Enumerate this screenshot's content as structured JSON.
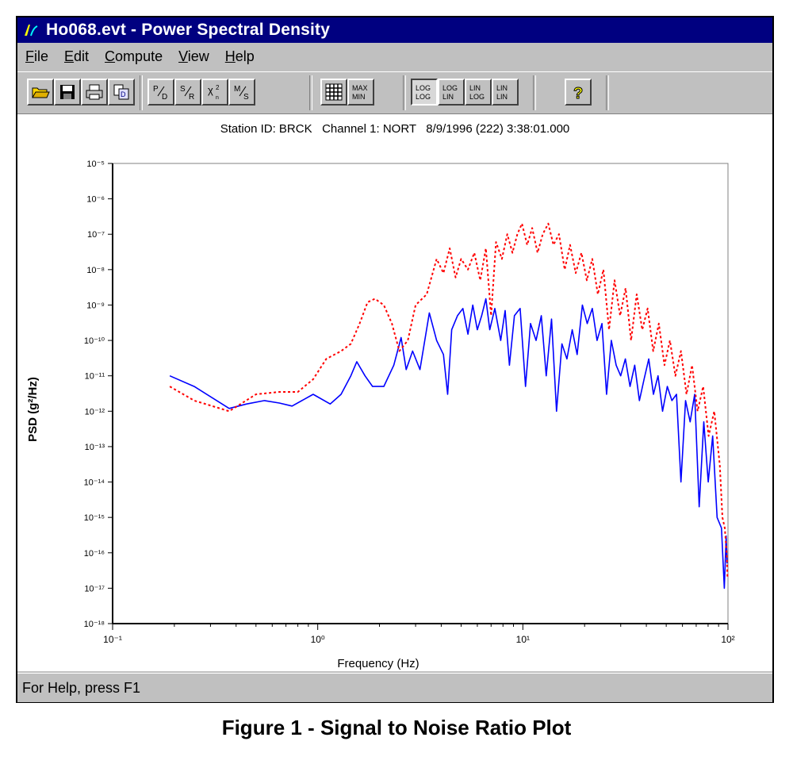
{
  "window": {
    "title": "Ho068.evt - Power Spectral Density"
  },
  "menu": {
    "items": [
      {
        "label": "File",
        "accel": "F",
        "rest": "ile"
      },
      {
        "label": "Edit",
        "accel": "E",
        "rest": "dit"
      },
      {
        "label": "Compute",
        "accel": "C",
        "rest": "ompute"
      },
      {
        "label": "View",
        "accel": "V",
        "rest": "iew"
      },
      {
        "label": "Help",
        "accel": "H",
        "rest": "elp"
      }
    ]
  },
  "toolbar": {
    "buttons": [
      {
        "name": "open-icon",
        "glyph": "📂"
      },
      {
        "name": "save-icon",
        "glyph": "💾"
      },
      {
        "name": "print-icon",
        "glyph": "🖶"
      },
      {
        "name": "copy-icon",
        "glyph": "⧉"
      },
      {
        "name": "psd-icon",
        "glyph": "P/D"
      },
      {
        "name": "snr-icon",
        "glyph": "S/R"
      },
      {
        "name": "chi-icon",
        "glyph": "χ²"
      },
      {
        "name": "ms-icon",
        "glyph": "M/S"
      },
      {
        "name": "grid-icon",
        "glyph": "▦"
      },
      {
        "name": "maxmin-icon",
        "glyph": "MAX MIN"
      },
      {
        "name": "loglog-icon",
        "glyph": "LOG LOG"
      },
      {
        "name": "loglin-icon",
        "glyph": "LOG LIN"
      },
      {
        "name": "linlog-icon",
        "glyph": "LIN LOG"
      },
      {
        "name": "linlin-icon",
        "glyph": "LIN LIN"
      },
      {
        "name": "help-icon",
        "glyph": "?"
      }
    ]
  },
  "plot": {
    "header": "Station ID: BRCK   Channel 1: NORT   8/9/1996 (222) 3:38:01.000"
  },
  "status": {
    "text": "For Help, press F1"
  },
  "caption": "Figure 1 - Signal to Noise Ratio Plot",
  "colors": {
    "signal": "#ff0000",
    "noise": "#0000ff",
    "titlebar": "#000080"
  },
  "chart_data": {
    "type": "line",
    "title": "",
    "xlabel": "Frequency (Hz)",
    "ylabel": "PSD (g²/Hz)",
    "xscale": "log",
    "yscale": "log",
    "xlim": [
      0.1,
      100
    ],
    "ylim": [
      1e-18,
      1e-05
    ],
    "xticks": [
      {
        "value": 0.1,
        "label": "10⁻¹"
      },
      {
        "value": 1,
        "label": "10⁰"
      },
      {
        "value": 10,
        "label": "10¹"
      },
      {
        "value": 100,
        "label": "10²"
      }
    ],
    "yticks": [
      {
        "value": 1e-05,
        "label": "10⁻⁵"
      },
      {
        "value": 1e-06,
        "label": "10⁻⁶"
      },
      {
        "value": 1e-07,
        "label": "10⁻⁷"
      },
      {
        "value": 1e-08,
        "label": "10⁻⁸"
      },
      {
        "value": 1e-09,
        "label": "10⁻⁹"
      },
      {
        "value": 1e-10,
        "label": "10⁻¹⁰"
      },
      {
        "value": 1e-11,
        "label": "10⁻¹¹"
      },
      {
        "value": 1e-12,
        "label": "10⁻¹²"
      },
      {
        "value": 1e-13,
        "label": "10⁻¹³"
      },
      {
        "value": 1e-14,
        "label": "10⁻¹⁴"
      },
      {
        "value": 1e-15,
        "label": "10⁻¹⁵"
      },
      {
        "value": 1e-16,
        "label": "10⁻¹⁶"
      },
      {
        "value": 1e-17,
        "label": "10⁻¹⁷"
      },
      {
        "value": 1e-18,
        "label": "10⁻¹⁸"
      }
    ],
    "grid": false,
    "series": [
      {
        "style": "solid",
        "color": "#0000ff",
        "points": [
          [
            0.19,
            1e-11
          ],
          [
            0.25,
            5e-12
          ],
          [
            0.37,
            1.2e-12
          ],
          [
            0.45,
            1.6e-12
          ],
          [
            0.55,
            2e-12
          ],
          [
            0.65,
            1.7e-12
          ],
          [
            0.75,
            1.4e-12
          ],
          [
            0.95,
            3e-12
          ],
          [
            1.15,
            1.6e-12
          ],
          [
            1.3,
            3e-12
          ],
          [
            1.45,
            1e-11
          ],
          [
            1.55,
            2.5e-11
          ],
          [
            1.7,
            1e-11
          ],
          [
            1.85,
            5e-12
          ],
          [
            2.1,
            5e-12
          ],
          [
            2.35,
            2e-11
          ],
          [
            2.55,
            1.2e-10
          ],
          [
            2.7,
            1.5e-11
          ],
          [
            2.9,
            5e-11
          ],
          [
            3.15,
            1.5e-11
          ],
          [
            3.5,
            6e-10
          ],
          [
            3.8,
            1e-10
          ],
          [
            4.1,
            4e-11
          ],
          [
            4.3,
            3e-12
          ],
          [
            4.5,
            2e-10
          ],
          [
            4.8,
            5e-10
          ],
          [
            5.1,
            8e-10
          ],
          [
            5.4,
            1.5e-10
          ],
          [
            5.7,
            1e-09
          ],
          [
            6.0,
            2e-10
          ],
          [
            6.3,
            5e-10
          ],
          [
            6.6,
            1.5e-09
          ],
          [
            6.9,
            2e-10
          ],
          [
            7.3,
            8e-10
          ],
          [
            7.8,
            1e-10
          ],
          [
            8.2,
            7e-10
          ],
          [
            8.6,
            2e-11
          ],
          [
            9.1,
            5e-10
          ],
          [
            9.7,
            8e-10
          ],
          [
            10.3,
            5e-12
          ],
          [
            10.9,
            3e-10
          ],
          [
            11.6,
            1e-10
          ],
          [
            12.3,
            5e-10
          ],
          [
            13.0,
            1e-11
          ],
          [
            13.8,
            4e-10
          ],
          [
            14.6,
            1e-12
          ],
          [
            15.5,
            8e-11
          ],
          [
            16.4,
            3e-11
          ],
          [
            17.4,
            2e-10
          ],
          [
            18.4,
            4e-11
          ],
          [
            19.5,
            1e-09
          ],
          [
            20.6,
            3e-10
          ],
          [
            21.8,
            8e-10
          ],
          [
            23.0,
            1e-10
          ],
          [
            24.3,
            3e-10
          ],
          [
            25.6,
            3e-12
          ],
          [
            27.0,
            1e-10
          ],
          [
            28.5,
            2e-11
          ],
          [
            30.0,
            1e-11
          ],
          [
            31.6,
            3e-11
          ],
          [
            33.3,
            5e-12
          ],
          [
            35.1,
            2e-11
          ],
          [
            37.0,
            2e-12
          ],
          [
            39.0,
            8e-12
          ],
          [
            41.1,
            3e-11
          ],
          [
            43.3,
            3e-12
          ],
          [
            45.6,
            1e-11
          ],
          [
            48.0,
            1e-12
          ],
          [
            50.6,
            5e-12
          ],
          [
            53.3,
            2e-12
          ],
          [
            56.1,
            3e-12
          ],
          [
            59.0,
            1e-14
          ],
          [
            62.1,
            2e-12
          ],
          [
            65.4,
            5e-13
          ],
          [
            68.8,
            3e-12
          ],
          [
            72.4,
            2e-15
          ],
          [
            76.2,
            5e-13
          ],
          [
            80.1,
            1e-14
          ],
          [
            84.2,
            2e-13
          ],
          [
            88.5,
            1e-15
          ],
          [
            93.0,
            5e-16
          ],
          [
            96.0,
            1e-17
          ],
          [
            98.0,
            3e-16
          ],
          [
            99.0,
            5e-17
          ]
        ]
      },
      {
        "style": "dotted",
        "color": "#ff0000",
        "points": [
          [
            0.19,
            5e-12
          ],
          [
            0.25,
            2e-12
          ],
          [
            0.37,
            1e-12
          ],
          [
            0.5,
            3e-12
          ],
          [
            0.65,
            3.5e-12
          ],
          [
            0.8,
            3.5e-12
          ],
          [
            0.95,
            8e-12
          ],
          [
            1.1,
            3e-11
          ],
          [
            1.3,
            5e-11
          ],
          [
            1.45,
            8e-11
          ],
          [
            1.6,
            3e-10
          ],
          [
            1.75,
            1.2e-09
          ],
          [
            1.9,
            1.5e-09
          ],
          [
            2.1,
            1e-09
          ],
          [
            2.3,
            3e-10
          ],
          [
            2.5,
            5e-11
          ],
          [
            2.75,
            1e-10
          ],
          [
            3.0,
            1e-09
          ],
          [
            3.4,
            2e-09
          ],
          [
            3.8,
            2e-08
          ],
          [
            4.1,
            8e-09
          ],
          [
            4.4,
            4e-08
          ],
          [
            4.7,
            6e-09
          ],
          [
            5.0,
            2e-08
          ],
          [
            5.4,
            1e-08
          ],
          [
            5.8,
            3e-08
          ],
          [
            6.2,
            5e-09
          ],
          [
            6.6,
            4e-08
          ],
          [
            7.0,
            5e-10
          ],
          [
            7.4,
            6e-08
          ],
          [
            7.9,
            2e-08
          ],
          [
            8.4,
            1e-07
          ],
          [
            8.9,
            3e-08
          ],
          [
            9.4,
            1e-07
          ],
          [
            9.9,
            2e-07
          ],
          [
            10.5,
            5e-08
          ],
          [
            11.1,
            1.5e-07
          ],
          [
            11.8,
            3e-08
          ],
          [
            12.5,
            1e-07
          ],
          [
            13.3,
            2e-07
          ],
          [
            14.1,
            5e-08
          ],
          [
            15.0,
            1e-07
          ],
          [
            16.0,
            1e-08
          ],
          [
            17.0,
            5e-08
          ],
          [
            18.1,
            8e-09
          ],
          [
            19.3,
            3e-08
          ],
          [
            20.5,
            5e-09
          ],
          [
            21.8,
            2e-08
          ],
          [
            23.2,
            2e-09
          ],
          [
            24.7,
            1e-08
          ],
          [
            26.3,
            2e-10
          ],
          [
            28.0,
            5e-09
          ],
          [
            29.8,
            5e-10
          ],
          [
            31.7,
            3e-09
          ],
          [
            33.7,
            1e-10
          ],
          [
            35.9,
            2e-09
          ],
          [
            38.2,
            2e-10
          ],
          [
            40.6,
            8e-10
          ],
          [
            43.2,
            5e-11
          ],
          [
            46.0,
            3e-10
          ],
          [
            49.0,
            2e-11
          ],
          [
            52.1,
            1e-10
          ],
          [
            55.4,
            1e-11
          ],
          [
            59.0,
            5e-11
          ],
          [
            62.8,
            3e-12
          ],
          [
            66.8,
            2e-11
          ],
          [
            71.1,
            1e-12
          ],
          [
            75.7,
            5e-12
          ],
          [
            80.5,
            2e-13
          ],
          [
            85.7,
            1e-12
          ],
          [
            91.2,
            3e-14
          ],
          [
            94.0,
            1e-15
          ],
          [
            96.5,
            5e-16
          ],
          [
            98.5,
            1e-16
          ],
          [
            99.5,
            2e-17
          ]
        ]
      }
    ]
  }
}
